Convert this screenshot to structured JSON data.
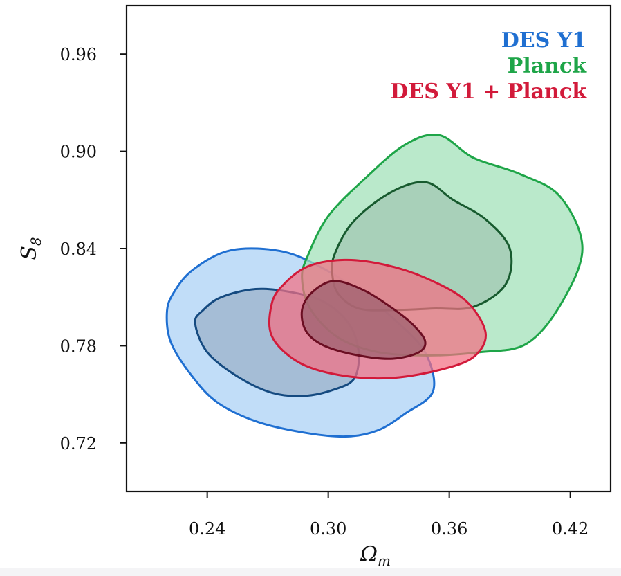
{
  "chart_data": {
    "type": "contour",
    "xlabel": "Ω",
    "xlabel_sub": "m",
    "ylabel": "S",
    "ylabel_sub": "8",
    "xlim": [
      0.2,
      0.44
    ],
    "ylim": [
      0.69,
      0.99
    ],
    "x_ticks": [
      0.24,
      0.3,
      0.36,
      0.42
    ],
    "x_tick_labels": [
      "0.24",
      "0.30",
      "0.36",
      "0.42"
    ],
    "y_ticks": [
      0.72,
      0.78,
      0.84,
      0.9,
      0.96
    ],
    "y_tick_labels": [
      "0.72",
      "0.78",
      "0.84",
      "0.90",
      "0.96"
    ],
    "legend_location": "upper right",
    "series": [
      {
        "name": "DES Y1",
        "color": "#1f6fd1",
        "fill": "#a9d0f5",
        "inner_color": "#154a80",
        "inner_fill": "#9db3cc",
        "outer": [
          [
            0.22,
            0.8
          ],
          [
            0.222,
            0.782
          ],
          [
            0.232,
            0.762
          ],
          [
            0.245,
            0.745
          ],
          [
            0.265,
            0.733
          ],
          [
            0.29,
            0.726
          ],
          [
            0.31,
            0.724
          ],
          [
            0.325,
            0.728
          ],
          [
            0.338,
            0.738
          ],
          [
            0.352,
            0.752
          ],
          [
            0.348,
            0.776
          ],
          [
            0.333,
            0.796
          ],
          [
            0.318,
            0.811
          ],
          [
            0.3,
            0.826
          ],
          [
            0.278,
            0.838
          ],
          [
            0.252,
            0.839
          ],
          [
            0.233,
            0.827
          ],
          [
            0.223,
            0.812
          ]
        ],
        "inner": [
          [
            0.234,
            0.794
          ],
          [
            0.24,
            0.776
          ],
          [
            0.255,
            0.761
          ],
          [
            0.272,
            0.751
          ],
          [
            0.288,
            0.749
          ],
          [
            0.303,
            0.753
          ],
          [
            0.313,
            0.76
          ],
          [
            0.315,
            0.777
          ],
          [
            0.31,
            0.794
          ],
          [
            0.298,
            0.807
          ],
          [
            0.282,
            0.813
          ],
          [
            0.264,
            0.815
          ],
          [
            0.247,
            0.81
          ],
          [
            0.238,
            0.802
          ]
        ]
      },
      {
        "name": "Planck",
        "color": "#1ea548",
        "fill": "#9fe0b7",
        "inner_color": "#175a2e",
        "inner_fill": "#a3c9b4",
        "outer": [
          [
            0.29,
            0.836
          ],
          [
            0.3,
            0.86
          ],
          [
            0.318,
            0.883
          ],
          [
            0.338,
            0.904
          ],
          [
            0.355,
            0.91
          ],
          [
            0.372,
            0.896
          ],
          [
            0.395,
            0.886
          ],
          [
            0.415,
            0.872
          ],
          [
            0.426,
            0.84
          ],
          [
            0.415,
            0.805
          ],
          [
            0.398,
            0.781
          ],
          [
            0.375,
            0.776
          ],
          [
            0.35,
            0.774
          ],
          [
            0.325,
            0.776
          ],
          [
            0.305,
            0.785
          ],
          [
            0.291,
            0.803
          ],
          [
            0.287,
            0.822
          ]
        ],
        "inner": [
          [
            0.303,
            0.836
          ],
          [
            0.312,
            0.856
          ],
          [
            0.33,
            0.874
          ],
          [
            0.348,
            0.881
          ],
          [
            0.362,
            0.87
          ],
          [
            0.378,
            0.858
          ],
          [
            0.39,
            0.84
          ],
          [
            0.388,
            0.818
          ],
          [
            0.372,
            0.804
          ],
          [
            0.352,
            0.803
          ],
          [
            0.332,
            0.802
          ],
          [
            0.315,
            0.803
          ],
          [
            0.305,
            0.812
          ],
          [
            0.302,
            0.824
          ]
        ]
      },
      {
        "name": "DES Y1 + Planck",
        "color": "#d21a3a",
        "fill": "#f26f82",
        "inner_color": "#6b0e22",
        "inner_fill": "#a06371",
        "outer": [
          [
            0.272,
            0.806
          ],
          [
            0.272,
            0.786
          ],
          [
            0.285,
            0.77
          ],
          [
            0.305,
            0.762
          ],
          [
            0.33,
            0.76
          ],
          [
            0.355,
            0.765
          ],
          [
            0.372,
            0.773
          ],
          [
            0.378,
            0.788
          ],
          [
            0.368,
            0.808
          ],
          [
            0.348,
            0.822
          ],
          [
            0.328,
            0.83
          ],
          [
            0.308,
            0.833
          ],
          [
            0.29,
            0.829
          ],
          [
            0.278,
            0.818
          ]
        ],
        "inner": [
          [
            0.287,
            0.802
          ],
          [
            0.289,
            0.789
          ],
          [
            0.298,
            0.78
          ],
          [
            0.315,
            0.774
          ],
          [
            0.332,
            0.772
          ],
          [
            0.345,
            0.776
          ],
          [
            0.348,
            0.783
          ],
          [
            0.342,
            0.793
          ],
          [
            0.332,
            0.803
          ],
          [
            0.318,
            0.814
          ],
          [
            0.303,
            0.82
          ],
          [
            0.292,
            0.813
          ]
        ]
      }
    ]
  }
}
